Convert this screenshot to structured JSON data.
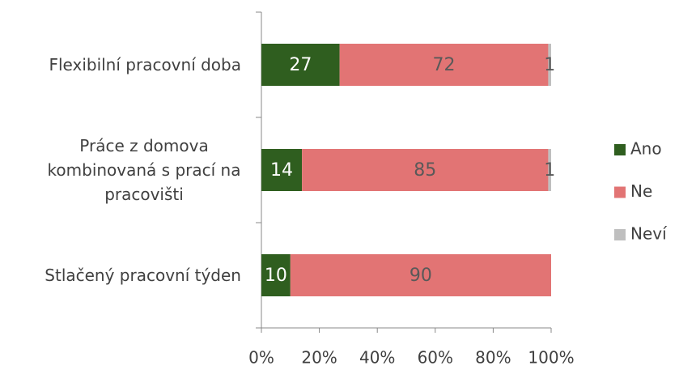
{
  "chart_data": {
    "type": "stacked-bar-horizontal",
    "categories": [
      "Flexibilní pracovní doba",
      "Práce z domova kombinovaná s prací na pracovišti",
      "Stlačený pracovní týden"
    ],
    "series": [
      {
        "name": "Ano",
        "color": "#2f5e1f",
        "values": [
          27,
          14,
          10
        ]
      },
      {
        "name": "Ne",
        "color": "#e27474",
        "values": [
          72,
          85,
          90
        ]
      },
      {
        "name": "Neví",
        "color": "#bfbfbf",
        "values": [
          1,
          1,
          null
        ]
      }
    ],
    "xlim": [
      0,
      100
    ],
    "xticks": [
      {
        "value": 0,
        "label": "0%"
      },
      {
        "value": 20,
        "label": "20%"
      },
      {
        "value": 40,
        "label": "40%"
      },
      {
        "value": 60,
        "label": "60%"
      },
      {
        "value": 80,
        "label": "80%"
      },
      {
        "value": 100,
        "label": "100%"
      }
    ],
    "legend": "right"
  }
}
